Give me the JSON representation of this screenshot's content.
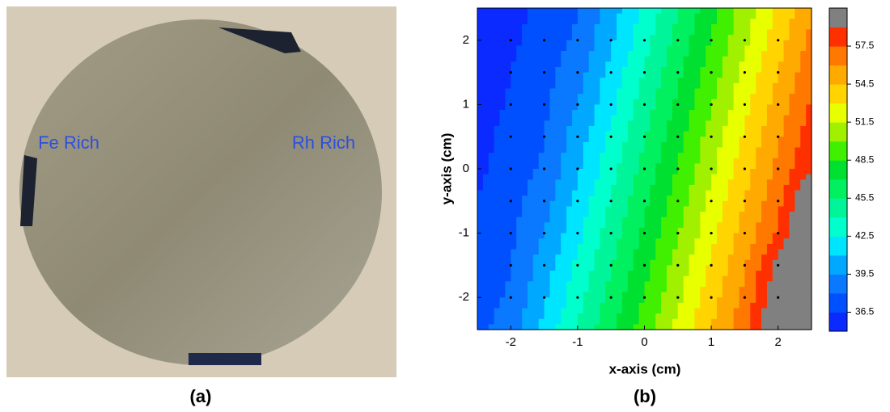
{
  "photo": {
    "labels": [
      "Fe Rich",
      "Rh Rich"
    ],
    "caption": "(a)"
  },
  "chart_data": {
    "type": "contour",
    "caption": "(b)",
    "x_label": "x-axis (cm)",
    "y_label": "y-axis (cm)",
    "x": [
      -2.5,
      -2,
      -1.5,
      -1,
      -0.5,
      0,
      0.5,
      1,
      1.5,
      2,
      2.5
    ],
    "y": [
      2.5,
      2,
      1.5,
      1,
      0.5,
      0,
      -0.5,
      -1,
      -1.5,
      -2,
      -2.5
    ],
    "z": [
      [
        35.0,
        36.0,
        37.0,
        38.0,
        40.2,
        42.8,
        45.4,
        48.0,
        50.6,
        53.2,
        55.8
      ],
      [
        35.2,
        36.2,
        37.2,
        38.2,
        40.8,
        43.4,
        46.0,
        48.6,
        51.2,
        53.8,
        56.4
      ],
      [
        35.5,
        36.5,
        37.5,
        38.9,
        41.5,
        44.1,
        46.7,
        49.3,
        51.9,
        54.5,
        57.1
      ],
      [
        35.7,
        36.7,
        37.7,
        39.5,
        42.1,
        44.7,
        47.3,
        49.9,
        52.5,
        55.1,
        57.7
      ],
      [
        36.0,
        37.0,
        38.0,
        40.2,
        42.8,
        45.4,
        48.0,
        50.6,
        53.2,
        55.8,
        58.4
      ],
      [
        36.2,
        37.2,
        38.2,
        40.8,
        43.4,
        46.0,
        48.6,
        51.2,
        53.8,
        56.4,
        59.0
      ],
      [
        36.5,
        37.5,
        38.9,
        41.5,
        44.1,
        46.7,
        49.3,
        51.9,
        54.5,
        57.1,
        61.2
      ],
      [
        36.7,
        37.7,
        39.5,
        42.1,
        44.7,
        47.3,
        49.9,
        52.5,
        55.1,
        57.7,
        61.5
      ],
      [
        37.0,
        38.0,
        40.2,
        42.8,
        45.4,
        48.0,
        50.6,
        53.2,
        55.8,
        59.5,
        62.0
      ],
      [
        37.2,
        38.2,
        40.8,
        43.4,
        46.0,
        48.6,
        51.2,
        53.8,
        56.4,
        60.5,
        62.5
      ],
      [
        37.5,
        38.9,
        41.5,
        44.1,
        46.7,
        49.3,
        51.9,
        54.5,
        57.1,
        61.0,
        63.0
      ]
    ],
    "xlim": [
      -2.5,
      2.5
    ],
    "ylim": [
      -2.5,
      2.5
    ],
    "xticks": [
      -2,
      -1,
      0,
      1,
      2
    ],
    "yticks": [
      -2,
      -1,
      0,
      1,
      2
    ],
    "levels": [
      35,
      36.5,
      38,
      39.5,
      41,
      42.5,
      44,
      45.5,
      47,
      48.5,
      50,
      51.5,
      53,
      54.5,
      56,
      57.5,
      59,
      60.5
    ],
    "colors": [
      "#0a2aff",
      "#0050ff",
      "#0a78ff",
      "#00a8ff",
      "#00e5ff",
      "#00ffcc",
      "#00f59a",
      "#00f060",
      "#00e030",
      "#40f000",
      "#a0f000",
      "#e8ff00",
      "#ffd400",
      "#ffaa00",
      "#ff7800",
      "#ff3000",
      "#808080"
    ],
    "colorbar_ticks": [
      36.5,
      39.5,
      42.5,
      45.5,
      48.5,
      51.5,
      54.5,
      57.5
    ]
  }
}
